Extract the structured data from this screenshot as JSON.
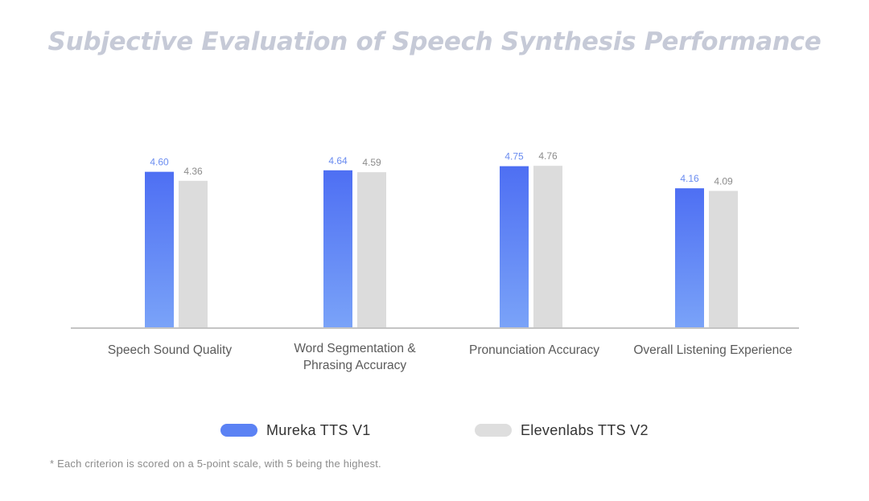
{
  "chart_data": {
    "type": "bar",
    "title": "Subjective Evaluation of Speech Synthesis Performance",
    "categories": [
      [
        "Speech Sound Quality"
      ],
      [
        "Word Segmentation &",
        "Phrasing Accuracy"
      ],
      [
        "Pronunciation Accuracy"
      ],
      [
        "Overall Listening Experience"
      ]
    ],
    "series": [
      {
        "name": "Mureka TTS V1",
        "values": [
          4.6,
          4.64,
          4.75,
          4.16
        ],
        "labels": [
          "4.60",
          "4.64",
          "4.75",
          "4.16"
        ],
        "color_top": "#4e6ff3",
        "color_bottom": "#7aa3f8",
        "label_color": "#6a8cf0"
      },
      {
        "name": "Elevenlabs TTS V2",
        "values": [
          4.36,
          4.59,
          4.76,
          4.09
        ],
        "labels": [
          "4.36",
          "4.59",
          "4.76",
          "4.09"
        ],
        "color_top": "#dcdcdc",
        "color_bottom": "#dcdcdc",
        "label_color": "#8c8c8c"
      }
    ],
    "xlabel": "",
    "ylabel": "",
    "ylim": [
      0,
      5
    ],
    "grid": false,
    "legend": "bottom-center"
  },
  "legend": {
    "items": [
      {
        "label": "Mureka TTS V1",
        "color": "#5b82f4"
      },
      {
        "label": "Elevenlabs TTS V2",
        "color": "#dedede"
      }
    ]
  },
  "footnote": "* Each criterion is scored on a 5-point scale, with 5 being the highest."
}
